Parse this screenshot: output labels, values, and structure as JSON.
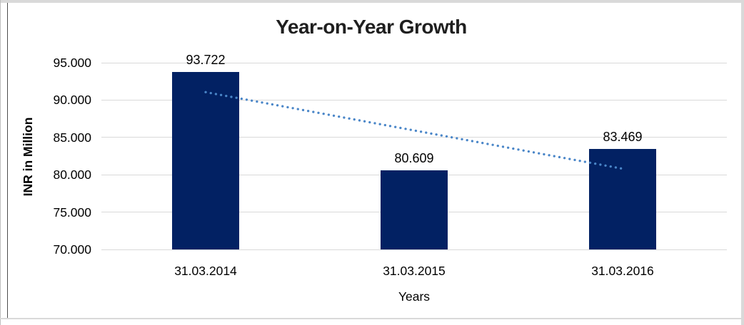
{
  "chart_data": {
    "type": "bar",
    "title": "Year-on-Year Growth",
    "xlabel": "Years",
    "ylabel": "INR in Million",
    "categories": [
      "31.03.2014",
      "31.03.2015",
      "31.03.2016"
    ],
    "values": [
      93.722,
      80.609,
      83.469
    ],
    "data_labels": [
      "93.722",
      "80.609",
      "83.469"
    ],
    "y_ticks": [
      "95.000",
      "90.000",
      "85.000",
      "80.000",
      "75.000",
      "70.000"
    ],
    "ylim": [
      70,
      95
    ],
    "grid": "horizontal-only",
    "legend_position": "none",
    "bar_color": "#022163",
    "gridline_color": "#d9d9d9",
    "trendline": {
      "type": "linear",
      "style": "dotted",
      "color": "#4a86c8",
      "start_value": 91.06,
      "end_value": 80.81
    }
  }
}
